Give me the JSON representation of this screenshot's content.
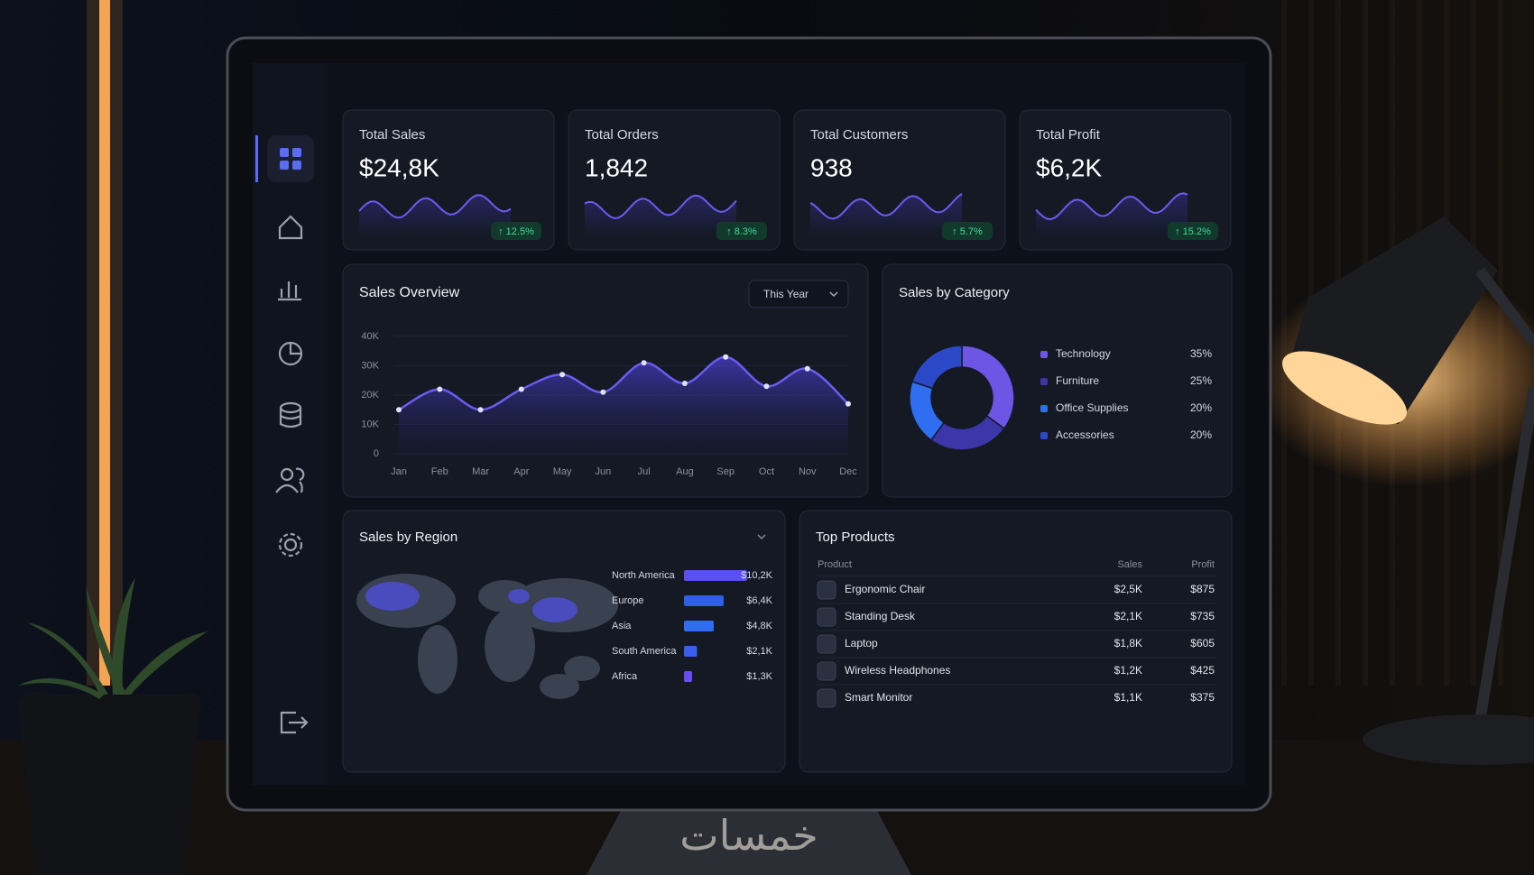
{
  "kpis": [
    {
      "label": "Total Sales",
      "value": "$24,8K",
      "change": "↑ 12.5%"
    },
    {
      "label": "Total Orders",
      "value": "1,842",
      "change": "↑ 8.3%"
    },
    {
      "label": "Total Customers",
      "value": "938",
      "change": "↑ 5.7%"
    },
    {
      "label": "Total Profit",
      "value": "$6,2K",
      "change": "↑ 15.2%"
    }
  ],
  "chart_data": [
    {
      "type": "area",
      "title": "Sales Overview",
      "filter": "This Year",
      "categories": [
        "Jan",
        "Feb",
        "Mar",
        "Apr",
        "May",
        "Jun",
        "Jul",
        "Aug",
        "Sep",
        "Oct",
        "Nov",
        "Dec"
      ],
      "values": [
        15000,
        22000,
        15000,
        22000,
        27000,
        21000,
        31000,
        24000,
        33000,
        23000,
        29000,
        17000
      ],
      "color": "#6a5cf0",
      "ylim": [
        0,
        40000
      ],
      "yticks": [
        0,
        {
          "value": 10000,
          "label": "10K"
        },
        {
          "value": 20000,
          "label": "20K"
        },
        {
          "value": 30000,
          "label": "30K"
        },
        {
          "value": 40000,
          "label": "40K"
        }
      ],
      "grid": true
    },
    {
      "type": "donut",
      "title": "Sales by Category",
      "categories": [
        "Technology",
        "Furniture",
        "Office Supplies",
        "Accessories"
      ],
      "values": [
        35,
        25,
        20,
        20
      ],
      "value_labels": [
        "35%",
        "25%",
        "20%",
        "20%"
      ],
      "colors": [
        "#6d55e6",
        "#3c36a8",
        "#2f6ef0",
        "#2a48c8"
      ]
    },
    {
      "type": "hbar",
      "title": "Sales by Region",
      "categories": [
        "North America",
        "Europe",
        "Asia",
        "South America",
        "Africa"
      ],
      "values": [
        10.2,
        6.4,
        4.8,
        2.1,
        1.3
      ],
      "value_labels": [
        "$10,2K",
        "$6,4K",
        "$4,8K",
        "$2,1K",
        "$1,3K"
      ],
      "colors": [
        "#5a4ff0",
        "#2f5fe6",
        "#2f6ef0",
        "#3a5ef0",
        "#6a4cf0"
      ]
    }
  ],
  "top_products": {
    "title": "Top Products",
    "columns": [
      "Product",
      "Sales",
      "Profit"
    ],
    "rows": [
      [
        "Ergonomic Chair",
        "$2,5K",
        "$875"
      ],
      [
        "Standing Desk",
        "$2,1K",
        "$735"
      ],
      [
        "Laptop",
        "$1,8K",
        "$605"
      ],
      [
        "Wireless Headphones",
        "$1,2K",
        "$425"
      ],
      [
        "Smart Monitor",
        "$1,1K",
        "$375"
      ]
    ]
  },
  "watermark": "خمسات"
}
